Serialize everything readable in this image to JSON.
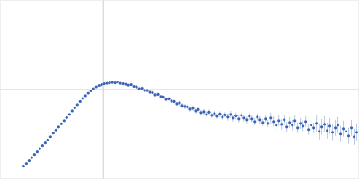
{
  "chart_data": {
    "type": "scatter",
    "color": "#3b64b4",
    "marker": "circle",
    "grid": true,
    "tick_labels": false,
    "xlim": [
      0,
      400
    ],
    "ylim": [
      0,
      200
    ],
    "xticks": [
      115
    ],
    "yticks": [
      100
    ],
    "x": [
      26,
      29,
      32,
      35,
      38,
      41,
      44,
      47,
      50,
      53,
      56,
      59,
      62,
      65,
      68,
      71,
      74,
      77,
      80,
      83,
      86,
      89,
      92,
      95,
      98,
      101,
      104,
      107,
      110,
      113,
      116,
      119,
      122,
      125,
      128,
      131,
      134,
      137,
      140,
      143,
      146,
      149,
      152,
      155,
      158,
      161,
      164,
      167,
      170,
      173,
      176,
      179,
      182,
      185,
      188,
      191,
      194,
      197,
      200,
      203,
      206,
      209,
      212,
      215,
      218,
      221,
      224,
      227,
      230,
      233,
      236,
      239,
      242,
      245,
      248,
      251,
      254,
      257,
      260,
      263,
      266,
      269,
      272,
      275,
      278,
      281,
      284,
      287,
      290,
      293,
      296,
      299,
      302,
      305,
      308,
      311,
      314,
      317,
      320,
      323,
      326,
      329,
      332,
      335,
      338,
      341,
      344,
      347,
      350,
      353,
      356,
      359,
      362,
      365,
      368,
      371,
      374,
      377,
      380,
      383,
      386,
      389,
      392,
      395,
      398
    ],
    "values": [
      14,
      17,
      20,
      23.5,
      27,
      30,
      33.5,
      37,
      40,
      43.5,
      47,
      51,
      54.5,
      58,
      61.5,
      65,
      68.5,
      72,
      76,
      79.5,
      83,
      86.5,
      90,
      93,
      96,
      98.5,
      101,
      103,
      104.5,
      105.5,
      106.5,
      107,
      107.5,
      108,
      107.5,
      108.5,
      107,
      106.5,
      106,
      105,
      105.5,
      103.5,
      103,
      101,
      101.5,
      99,
      99,
      97,
      96.5,
      94,
      94.5,
      92,
      91.5,
      89,
      89.5,
      87,
      86.5,
      84,
      85,
      82,
      81,
      80.5,
      78,
      79,
      76,
      77.5,
      74,
      75,
      72,
      74.5,
      71,
      73,
      70,
      72.5,
      69,
      71.5,
      69,
      72,
      68,
      70.5,
      67,
      71,
      68,
      66,
      70,
      67,
      64,
      69,
      66,
      63,
      67,
      62,
      68,
      64,
      60,
      65,
      61,
      66,
      58,
      63,
      60,
      65,
      57,
      62,
      59,
      64,
      55,
      60,
      57,
      62,
      53,
      58,
      61,
      54,
      59,
      52,
      57,
      60,
      50,
      56,
      53,
      48,
      57,
      47,
      52
    ],
    "errors": [
      0.5,
      0.5,
      0.5,
      0.5,
      0.5,
      0.5,
      0.5,
      0.5,
      0.5,
      0.5,
      0.5,
      0.5,
      0.5,
      0.5,
      0.5,
      0.5,
      0.5,
      0.5,
      0.5,
      0.5,
      0.5,
      0.5,
      0.5,
      0.5,
      0.5,
      1,
      1,
      1,
      1,
      1,
      1,
      1,
      1,
      1,
      1,
      1,
      1,
      1,
      1,
      1,
      1,
      1,
      2,
      2,
      2,
      2,
      2,
      2,
      2,
      2,
      2,
      2,
      2,
      2,
      2,
      2,
      2,
      2,
      2,
      3,
      3,
      3,
      3,
      3,
      3,
      3,
      3,
      3,
      3,
      3,
      3,
      3,
      3,
      3,
      3,
      3,
      4,
      4,
      4,
      4,
      4,
      4,
      4,
      4,
      4,
      4,
      4,
      4,
      4,
      4,
      4,
      4,
      6,
      6,
      6,
      6,
      6,
      6,
      6,
      6,
      6,
      6,
      6,
      6,
      6,
      6,
      6,
      6,
      6,
      9,
      9,
      9,
      9,
      9,
      9,
      9,
      9,
      9,
      9,
      9,
      9,
      9,
      9,
      9,
      9
    ]
  }
}
